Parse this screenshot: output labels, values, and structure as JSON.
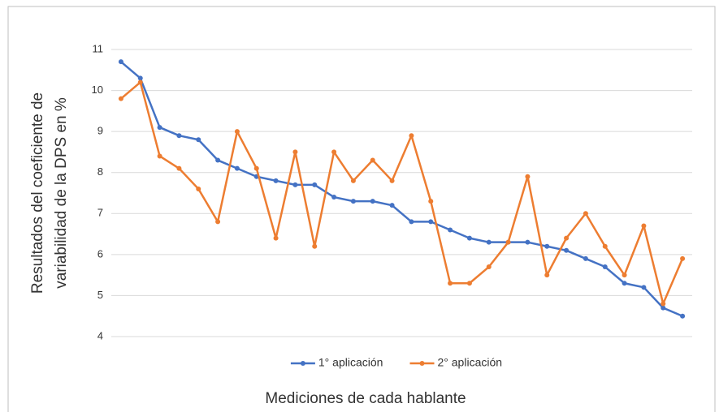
{
  "chart_data": {
    "type": "line",
    "x_label": "Mediciones de cada hablante",
    "y_label": [
      "Resultados del coeficiente de",
      "variabilidad de la DPS en %"
    ],
    "categories": [
      null,
      null,
      null,
      null,
      null,
      null,
      null,
      null,
      null,
      null,
      null,
      null,
      null,
      null,
      null,
      null,
      null,
      null,
      null,
      null,
      null,
      null,
      null,
      null,
      null,
      null,
      null,
      null,
      null,
      null
    ],
    "series": [
      {
        "name": "1° aplicación",
        "color": "#4472c4",
        "values": [
          10.7,
          10.3,
          9.1,
          8.9,
          8.8,
          8.3,
          8.1,
          7.9,
          7.8,
          7.7,
          7.7,
          7.4,
          7.3,
          7.3,
          7.2,
          6.8,
          6.8,
          6.6,
          6.4,
          6.3,
          6.3,
          6.3,
          6.2,
          6.1,
          5.9,
          5.7,
          5.3,
          5.2,
          4.7,
          4.5
        ]
      },
      {
        "name": "2° aplicación",
        "color": "#ed7d31",
        "values": [
          9.8,
          10.2,
          8.4,
          8.1,
          7.6,
          6.8,
          9.0,
          8.1,
          6.4,
          8.5,
          6.2,
          8.5,
          7.8,
          8.3,
          7.8,
          8.9,
          7.3,
          5.3,
          5.3,
          5.7,
          6.3,
          7.9,
          5.5,
          6.4,
          7.0,
          6.2,
          5.5,
          6.7,
          4.8,
          5.9
        ]
      }
    ],
    "ylim": [
      4,
      11
    ],
    "yticks": [
      4,
      5,
      6,
      7,
      8,
      9,
      10,
      11
    ],
    "grid": true,
    "legend": "bottom"
  }
}
